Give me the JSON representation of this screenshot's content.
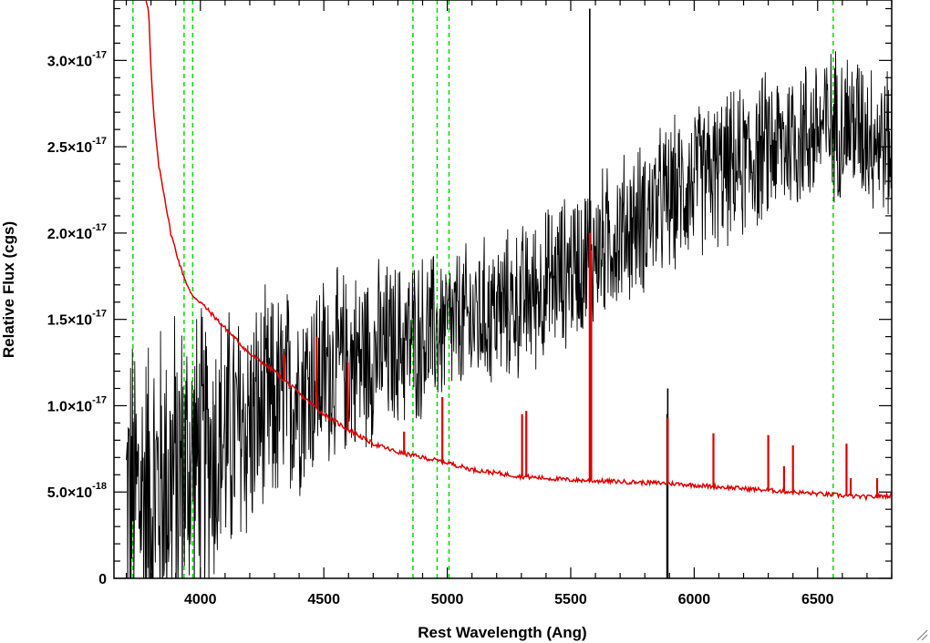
{
  "chart_data": {
    "type": "line",
    "xlabel": "Rest Wavelength (Ang)",
    "ylabel": "Relative Flux (cgs)",
    "xlim": [
      3650,
      6800
    ],
    "ylim": [
      0,
      3.35e-17
    ],
    "x_ticks": [
      4000,
      4500,
      5000,
      5500,
      6000,
      6500
    ],
    "x_tick_labels": [
      "4000",
      "4500",
      "5000",
      "5500",
      "6000",
      "6500"
    ],
    "y_ticks": [
      0,
      5e-18,
      1e-17,
      1.5e-17,
      2e-17,
      2.5e-17,
      3e-17
    ],
    "y_tick_labels": [
      {
        "mantissa": "0",
        "exponent": ""
      },
      {
        "mantissa": "5.0×10",
        "exponent": "-18"
      },
      {
        "mantissa": "1.0×10",
        "exponent": "-17"
      },
      {
        "mantissa": "1.5×10",
        "exponent": "-17"
      },
      {
        "mantissa": "2.0×10",
        "exponent": "-17"
      },
      {
        "mantissa": "2.5×10",
        "exponent": "-17"
      },
      {
        "mantissa": "3.0×10",
        "exponent": "-17"
      }
    ],
    "grid": false,
    "reference_lines": {
      "color": "#00dd00",
      "style": "dashed",
      "x": [
        3727,
        3934,
        3969,
        4861,
        4959,
        5007,
        6563
      ]
    },
    "series": [
      {
        "color": "#000000",
        "style": "noisy-spectrum",
        "x": [
          3700,
          3800,
          3900,
          4000,
          4100,
          4200,
          4300,
          4400,
          4500,
          4600,
          4700,
          4800,
          4900,
          5000,
          5100,
          5200,
          5300,
          5400,
          5500,
          5600,
          5700,
          5800,
          5900,
          6000,
          6100,
          6200,
          6300,
          6400,
          6500,
          6600,
          6700,
          6800
        ],
        "y": [
          4.5e-18,
          5e-18,
          6e-18,
          7e-18,
          8e-18,
          9e-18,
          1e-17,
          1.1e-17,
          1.2e-17,
          1.25e-17,
          1.3e-17,
          1.35e-17,
          1.4e-17,
          1.45e-17,
          1.5e-17,
          1.55e-17,
          1.6e-17,
          1.7e-17,
          1.8e-17,
          1.9e-17,
          2e-17,
          2.1e-17,
          2.2e-17,
          2.3e-17,
          2.35e-17,
          2.4e-17,
          2.5e-17,
          2.55e-17,
          2.6e-17,
          2.65e-17,
          2.6e-17,
          2.5e-17
        ],
        "noise": [
          1.1e-17,
          1.1e-17,
          1.1e-17,
          1e-17,
          9e-18,
          8e-18,
          7.5e-18,
          7e-18,
          6.5e-18,
          6e-18,
          6e-18,
          5.5e-18,
          5.5e-18,
          5e-18,
          5e-18,
          5e-18,
          5e-18,
          5e-18,
          5e-18,
          5e-18,
          5e-18,
          5e-18,
          5e-18,
          5e-18,
          5e-18,
          5e-18,
          5e-18,
          5e-18,
          5e-18,
          5e-18,
          5e-18,
          5e-18
        ]
      },
      {
        "color": "#dd0000",
        "style": "line",
        "x": [
          3780,
          3790,
          3800,
          3810,
          3820,
          3830,
          3850,
          3880,
          3920,
          3960,
          4000,
          4100,
          4200,
          4300,
          4400,
          4500,
          4600,
          4700,
          4800,
          4900,
          5000,
          5100,
          5200,
          5300,
          5400,
          5500,
          5600,
          5700,
          5800,
          5900,
          6000,
          6100,
          6200,
          6300,
          6400,
          6500,
          6600,
          6700,
          6800
        ],
        "y": [
          3.35e-17,
          3.3e-17,
          2.95e-17,
          2.7e-17,
          2.55e-17,
          2.4e-17,
          2.25e-17,
          2e-17,
          1.8e-17,
          1.65e-17,
          1.6e-17,
          1.45e-17,
          1.3e-17,
          1.2e-17,
          1.07e-17,
          9.5e-18,
          8.6e-18,
          7.8e-18,
          7.3e-18,
          7e-18,
          6.7e-18,
          6.3e-18,
          6.1e-18,
          5.9e-18,
          5.8e-18,
          5.7e-18,
          5.65e-18,
          5.6e-18,
          5.55e-18,
          5.5e-18,
          5.4e-18,
          5.3e-18,
          5.2e-18,
          5.1e-18,
          5e-18,
          4.9e-18,
          4.8e-18,
          4.7e-18,
          4.8e-18
        ],
        "spikes": [
          {
            "x": 4340,
            "y": 1.3e-17
          },
          {
            "x": 4471,
            "y": 1.4e-17
          },
          {
            "x": 4597,
            "y": 1.25e-17
          },
          {
            "x": 4609,
            "y": 8.5e-18
          },
          {
            "x": 4825,
            "y": 8.5e-18
          },
          {
            "x": 4980,
            "y": 1.05e-17
          },
          {
            "x": 5303,
            "y": 9.5e-18
          },
          {
            "x": 5320,
            "y": 9.7e-18
          },
          {
            "x": 5577,
            "y": 2e-17
          },
          {
            "x": 5583,
            "y": 1.9e-17
          },
          {
            "x": 5893,
            "y": 9.3e-18
          },
          {
            "x": 6078,
            "y": 8.4e-18
          },
          {
            "x": 6300,
            "y": 8.3e-18
          },
          {
            "x": 6364,
            "y": 6.5e-18
          },
          {
            "x": 6400,
            "y": 7.7e-18
          },
          {
            "x": 6617,
            "y": 7.8e-18
          },
          {
            "x": 6634,
            "y": 5.8e-18
          },
          {
            "x": 6741,
            "y": 5.8e-18
          }
        ]
      }
    ],
    "black_features": [
      {
        "x": 5577,
        "y_top": 3.3e-17,
        "y_bottom": 2e-17
      },
      {
        "x": 5893,
        "y_top": 1.1e-17,
        "y_bottom": 0
      },
      {
        "x": 5890,
        "y_top": 9.5e-18,
        "y_bottom": 0
      }
    ]
  }
}
